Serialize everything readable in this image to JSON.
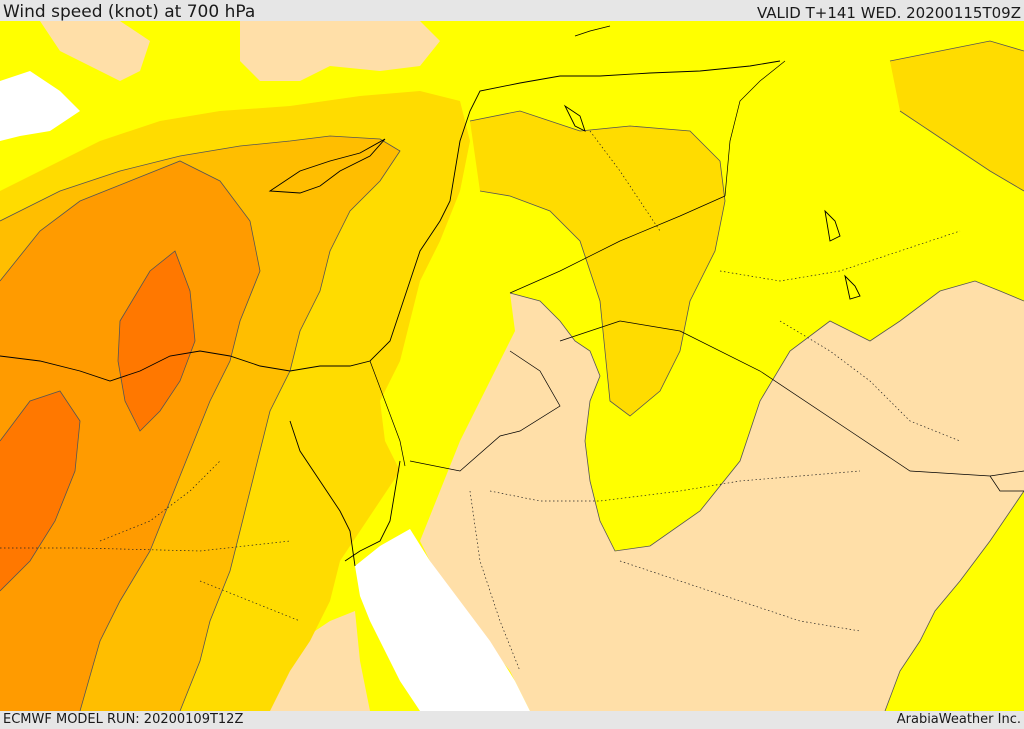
{
  "header": {
    "title": "Wind speed (knot) at 700 hPa",
    "valid_time": "VALID T+141 WED. 20200115T09Z"
  },
  "footer": {
    "model_run": "ECMWF MODEL RUN: 20200109T12Z",
    "credit": "ArabiaWeather Inc."
  },
  "colors": {
    "speed_lowest": "#ffdfa8",
    "speed_low": "#ffff00",
    "speed_mid": "#ffdc00",
    "speed_high": "#ffbe00",
    "speed_higher": "#ff9b00",
    "speed_highest": "#ff7800",
    "sea_masked": "#ffffff",
    "borders": "#000000"
  }
}
